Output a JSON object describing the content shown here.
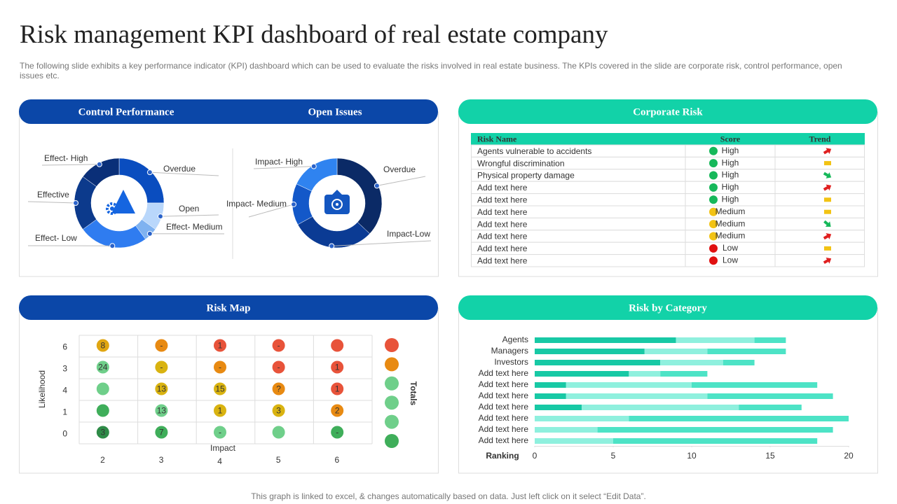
{
  "title": "Risk management KPI dashboard of real estate company",
  "description": "The following slide exhibits a key performance indicator (KPI) dashboard which can be used to evaluate the risks involved in real estate business. The KPIs covered in the slide are corporate risk, control performance, open issues etc.",
  "footer": "This graph is linked to excel, & changes automatically based on data. Just left click on it select “Edit Data”.",
  "chart_data": [
    {
      "type": "donut",
      "title": "Control Performance",
      "categories": [
        "Overdue",
        "Open",
        "Effect- Medium",
        "Effect- Low",
        "Effective",
        "Effect- High"
      ],
      "values": [
        25,
        10,
        5,
        25,
        20,
        15
      ],
      "colors": [
        "#0a4dbf",
        "#b9d7fb",
        "#7fb2f0",
        "#2f7cf0",
        "#0c3a8c",
        "#0a2f78"
      ]
    },
    {
      "type": "donut",
      "title": "Open Issues",
      "categories": [
        "Overdue",
        "Impact-Low",
        "Impact- Medium",
        "Impact- High"
      ],
      "values": [
        37,
        30,
        15,
        18
      ],
      "colors": [
        "#0b2a66",
        "#0b3b94",
        "#1358c9",
        "#2f83f0"
      ]
    },
    {
      "type": "risk-map",
      "title": "Risk Map",
      "xlabel": "Impact",
      "ylabel": "Likelihood",
      "totals_label": "Totals",
      "rows": [
        "6",
        "3",
        "4",
        "1",
        "0"
      ],
      "columns": [
        "2",
        "3",
        "4",
        "5",
        "6"
      ],
      "cells": [
        [
          {
            "label": "8",
            "color": "#e0a612"
          },
          {
            "label": "-",
            "color": "#e88a12"
          },
          {
            "label": "1",
            "color": "#e8533a"
          },
          {
            "label": "-",
            "color": "#e8533a"
          },
          {
            "label": null,
            "color": "#e8533a"
          }
        ],
        [
          {
            "label": "24",
            "color": "#6fcf8a"
          },
          {
            "label": "-",
            "color": "#d9b310"
          },
          {
            "label": "-",
            "color": "#e88a12"
          },
          {
            "label": "-",
            "color": "#e8533a"
          },
          {
            "label": "1",
            "color": "#e8533a"
          }
        ],
        [
          {
            "label": null,
            "color": "#6fcf8a"
          },
          {
            "label": "13",
            "color": "#d9b310"
          },
          {
            "label": "15",
            "color": "#d9b310"
          },
          {
            "label": "?",
            "color": "#e88a12"
          },
          {
            "label": "1",
            "color": "#e8533a"
          }
        ],
        [
          {
            "label": null,
            "color": "#3fae5a"
          },
          {
            "label": "13",
            "color": "#6fcf8a"
          },
          {
            "label": "1",
            "color": "#d9b310"
          },
          {
            "label": "3",
            "color": "#d9b310"
          },
          {
            "label": "2",
            "color": "#e88a12"
          }
        ],
        [
          {
            "label": "3",
            "color": "#2e8b47"
          },
          {
            "label": "7",
            "color": "#3fae5a"
          },
          {
            "label": "-",
            "color": "#6fcf8a"
          },
          {
            "label": null,
            "color": "#6fcf8a"
          },
          {
            "label": "-",
            "color": "#3fae5a"
          }
        ]
      ],
      "totals_colors": [
        "#e8533a",
        "#e88a12",
        "#6fcf8a",
        "#6fcf8a",
        "#6fcf8a",
        "#3fae5a"
      ]
    },
    {
      "type": "stacked-bar-horizontal",
      "title": "Risk by Category",
      "axis_label": "Ranking",
      "categories": [
        "Agents",
        "Managers",
        "Investors",
        "Add text here",
        "Add text here",
        "Add text here",
        "Add text here",
        "Add text here",
        "Add text here",
        "Add text here"
      ],
      "series": [
        {
          "color": "#17c9a5",
          "values": [
            9,
            7,
            8,
            6,
            2,
            2,
            3,
            0,
            0,
            0
          ]
        },
        {
          "color": "#8ff0de",
          "values": [
            5,
            4,
            4,
            2,
            8,
            9,
            10,
            6,
            4,
            5
          ]
        },
        {
          "color": "#4de3c6",
          "values": [
            2,
            5,
            2,
            3,
            8,
            8,
            4,
            14,
            15,
            13
          ]
        }
      ],
      "xlim": [
        0,
        20
      ],
      "xticks": [
        0,
        5,
        10,
        15,
        20
      ]
    }
  ],
  "corporate_risk": {
    "title": "Corporate Risk",
    "columns": [
      "Risk Name",
      "Score",
      "Trend"
    ],
    "rows": [
      [
        "Agents vulnerable to accidents",
        "High"
      ],
      [
        "Wrongful discrimination",
        "High"
      ],
      [
        "Physical property damage",
        "High"
      ],
      [
        "Add text here",
        "High"
      ],
      [
        "Add text here",
        "High"
      ],
      [
        "Add text here",
        "Medium"
      ],
      [
        "Add text here",
        "Medium"
      ],
      [
        "Add text here",
        "Medium"
      ],
      [
        "Add text here",
        "Low"
      ],
      [
        "Add text here",
        "Low"
      ]
    ],
    "score_colors": [
      "#16b85a",
      "#16b85a",
      "#16b85a",
      "#16b85a",
      "#16b85a",
      "#f2c314",
      "#f2c314",
      "#f2c314",
      "#e01010",
      "#e01010"
    ]
  }
}
